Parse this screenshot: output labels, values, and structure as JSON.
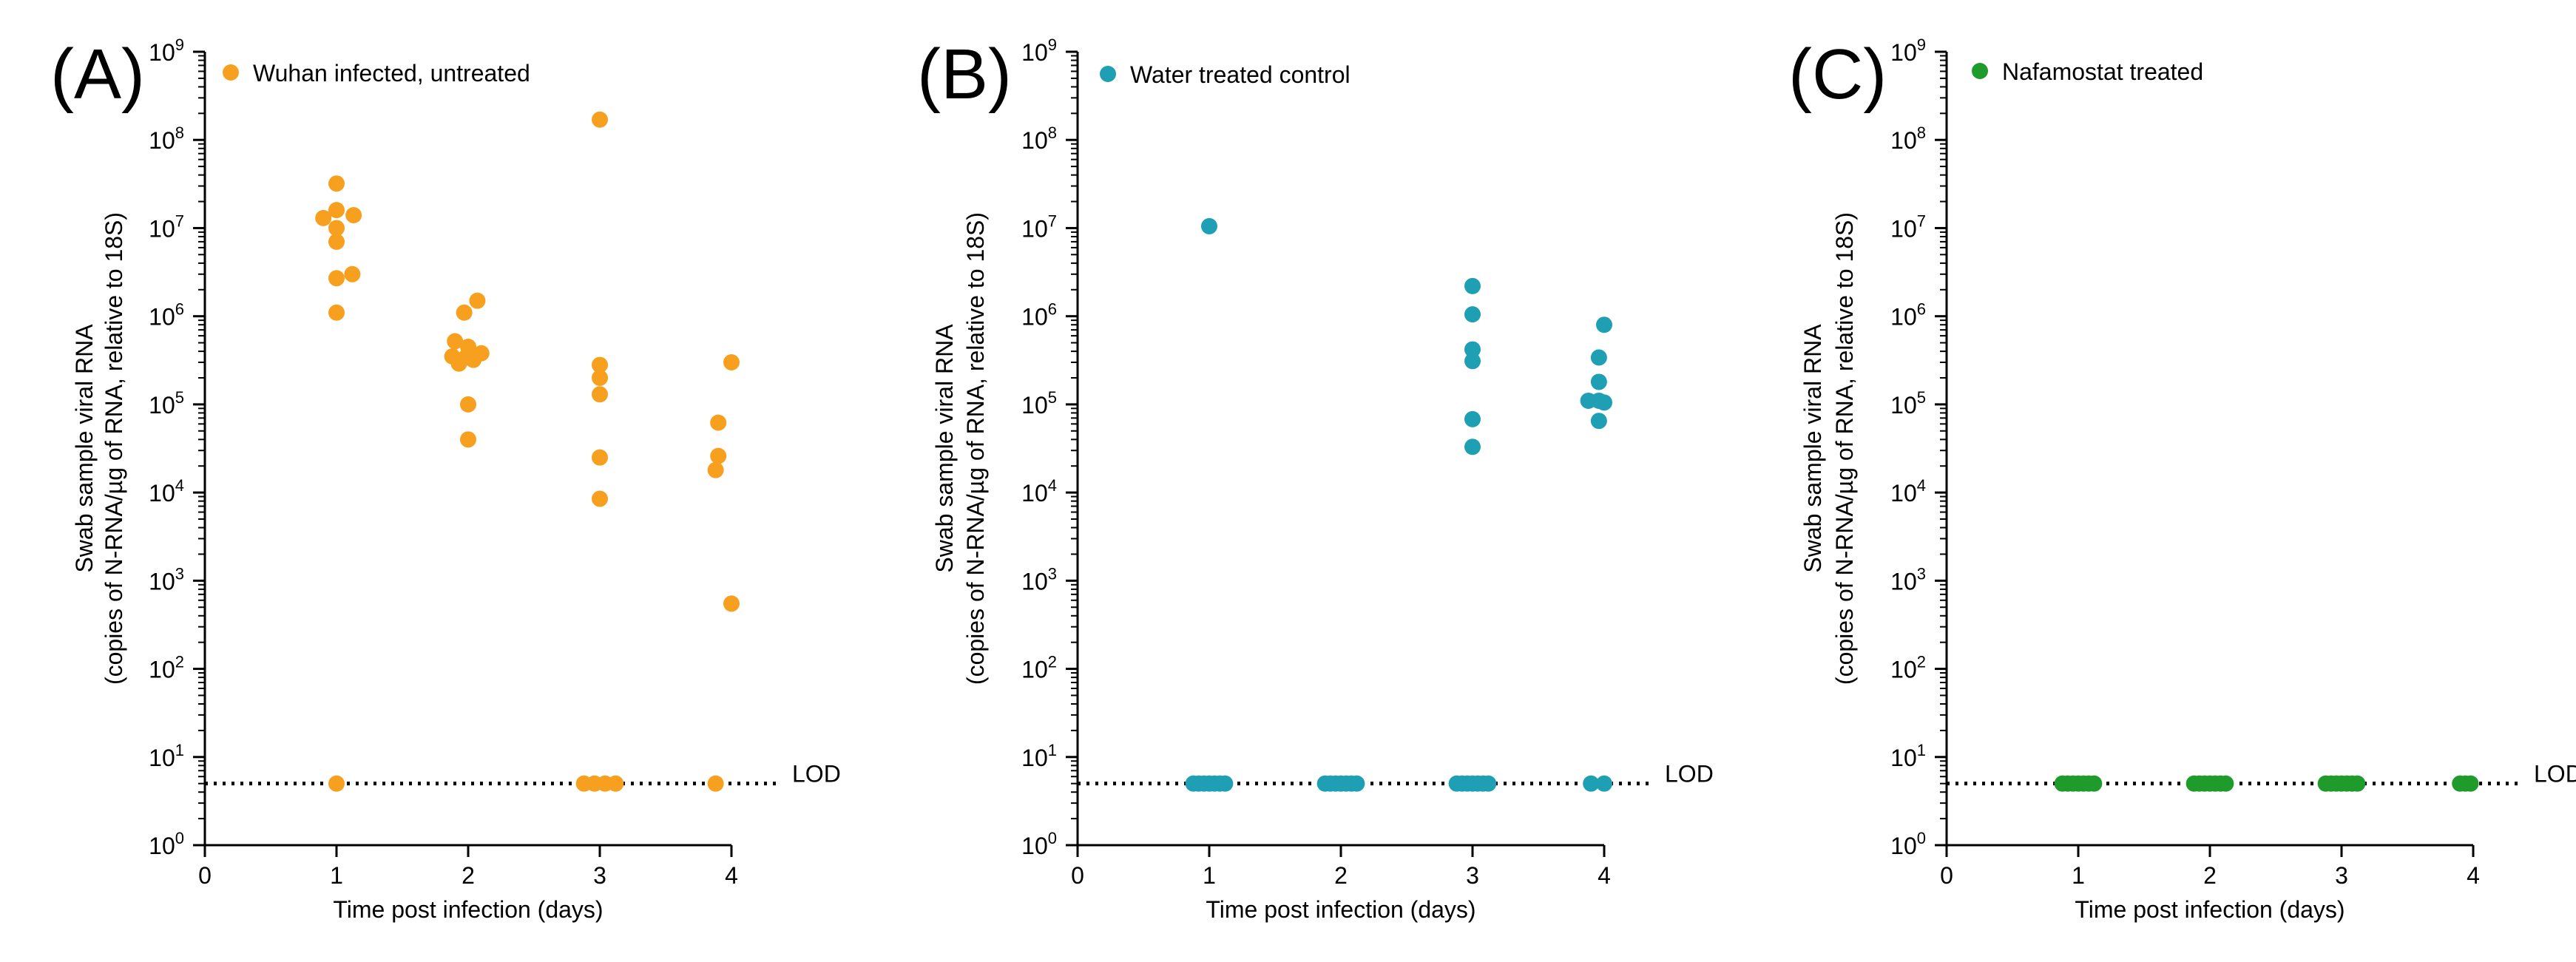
{
  "chart_data": [
    {
      "type": "scatter",
      "panel_label": "(A)",
      "legend": "Wuhan infected, untreated",
      "color": "#F7A020",
      "xlabel": "Time post infection (days)",
      "ylabel_lines": [
        "Swab sample viral RNA",
        "(copies of N-RNA/µg of RNA, relative to 18S)"
      ],
      "xlim": [
        0,
        4
      ],
      "xticks": [
        "0",
        "1",
        "2",
        "3",
        "4"
      ],
      "yscale": "log10",
      "ylim_exp": [
        0,
        9
      ],
      "yticks_base": "10",
      "yticks_exp": [
        "0",
        "1",
        "2",
        "3",
        "4",
        "5",
        "6",
        "7",
        "8",
        "9"
      ],
      "lod_value": 5,
      "lod_label": "LOD",
      "points": [
        {
          "x": 1.0,
          "y": 32000000
        },
        {
          "x": 0.9,
          "y": 13000000
        },
        {
          "x": 1.0,
          "y": 16000000
        },
        {
          "x": 1.0,
          "y": 10000000
        },
        {
          "x": 1.13,
          "y": 14000000
        },
        {
          "x": 1.0,
          "y": 7000000
        },
        {
          "x": 1.12,
          "y": 3000000
        },
        {
          "x": 1.0,
          "y": 2700000
        },
        {
          "x": 1.0,
          "y": 1100000
        },
        {
          "x": 1.0,
          "y": 5
        },
        {
          "x": 2.07,
          "y": 1500000
        },
        {
          "x": 1.97,
          "y": 1100000
        },
        {
          "x": 1.9,
          "y": 520000
        },
        {
          "x": 2.0,
          "y": 450000
        },
        {
          "x": 2.1,
          "y": 380000
        },
        {
          "x": 1.88,
          "y": 350000
        },
        {
          "x": 1.98,
          "y": 340000
        },
        {
          "x": 2.04,
          "y": 320000
        },
        {
          "x": 1.93,
          "y": 290000
        },
        {
          "x": 2.0,
          "y": 100000
        },
        {
          "x": 2.0,
          "y": 40000
        },
        {
          "x": 3.0,
          "y": 170000000
        },
        {
          "x": 3.0,
          "y": 280000
        },
        {
          "x": 3.0,
          "y": 200000
        },
        {
          "x": 3.0,
          "y": 130000
        },
        {
          "x": 3.0,
          "y": 25000
        },
        {
          "x": 3.0,
          "y": 8500
        },
        {
          "x": 2.88,
          "y": 5
        },
        {
          "x": 2.96,
          "y": 5
        },
        {
          "x": 3.04,
          "y": 5
        },
        {
          "x": 3.12,
          "y": 5
        },
        {
          "x": 4.0,
          "y": 300000
        },
        {
          "x": 3.9,
          "y": 62000
        },
        {
          "x": 3.9,
          "y": 26000
        },
        {
          "x": 3.88,
          "y": 18000
        },
        {
          "x": 4.0,
          "y": 550
        },
        {
          "x": 3.88,
          "y": 5
        }
      ]
    },
    {
      "type": "scatter",
      "panel_label": "(B)",
      "legend": "Water treated control",
      "color": "#1E9FB3",
      "xlabel": "Time post infection (days)",
      "ylabel_lines": [
        "Swab sample viral RNA",
        "(copies of N-RNA/µg of RNA, relative to 18S)"
      ],
      "xlim": [
        0,
        4
      ],
      "xticks": [
        "0",
        "1",
        "2",
        "3",
        "4"
      ],
      "yscale": "log10",
      "ylim_exp": [
        0,
        9
      ],
      "yticks_base": "10",
      "yticks_exp": [
        "0",
        "1",
        "2",
        "3",
        "4",
        "5",
        "6",
        "7",
        "8",
        "9"
      ],
      "lod_value": 5,
      "lod_label": "LOD",
      "points": [
        {
          "x": 1.0,
          "y": 10500000
        },
        {
          "x": 0.88,
          "y": 5
        },
        {
          "x": 0.92,
          "y": 5
        },
        {
          "x": 0.96,
          "y": 5
        },
        {
          "x": 1.0,
          "y": 5
        },
        {
          "x": 1.04,
          "y": 5
        },
        {
          "x": 1.08,
          "y": 5
        },
        {
          "x": 1.12,
          "y": 5
        },
        {
          "x": 1.88,
          "y": 5
        },
        {
          "x": 1.92,
          "y": 5
        },
        {
          "x": 1.96,
          "y": 5
        },
        {
          "x": 2.0,
          "y": 5
        },
        {
          "x": 2.04,
          "y": 5
        },
        {
          "x": 2.08,
          "y": 5
        },
        {
          "x": 2.12,
          "y": 5
        },
        {
          "x": 3.0,
          "y": 2200000
        },
        {
          "x": 3.0,
          "y": 1050000
        },
        {
          "x": 3.0,
          "y": 420000
        },
        {
          "x": 3.0,
          "y": 310000
        },
        {
          "x": 3.0,
          "y": 68000
        },
        {
          "x": 3.0,
          "y": 33000
        },
        {
          "x": 2.88,
          "y": 5
        },
        {
          "x": 2.92,
          "y": 5
        },
        {
          "x": 2.96,
          "y": 5
        },
        {
          "x": 3.0,
          "y": 5
        },
        {
          "x": 3.04,
          "y": 5
        },
        {
          "x": 3.08,
          "y": 5
        },
        {
          "x": 3.12,
          "y": 5
        },
        {
          "x": 4.0,
          "y": 800000
        },
        {
          "x": 3.96,
          "y": 340000
        },
        {
          "x": 3.96,
          "y": 180000
        },
        {
          "x": 3.88,
          "y": 110000
        },
        {
          "x": 3.96,
          "y": 110000
        },
        {
          "x": 4.0,
          "y": 105000
        },
        {
          "x": 3.96,
          "y": 65000
        },
        {
          "x": 3.9,
          "y": 5
        },
        {
          "x": 4.0,
          "y": 5
        }
      ]
    },
    {
      "type": "scatter",
      "panel_label": "(C)",
      "legend": "Nafamostat treated",
      "color": "#1E9B2A",
      "xlabel": "Time post infection (days)",
      "ylabel_lines": [
        "Swab sample viral RNA",
        "(copies of N-RNA/µg of RNA, relative to 18S)"
      ],
      "xlim": [
        0,
        4
      ],
      "xticks": [
        "0",
        "1",
        "2",
        "3",
        "4"
      ],
      "yscale": "log10",
      "ylim_exp": [
        0,
        9
      ],
      "yticks_base": "10",
      "yticks_exp": [
        "0",
        "1",
        "2",
        "3",
        "4",
        "5",
        "6",
        "7",
        "8",
        "9"
      ],
      "lod_value": 5,
      "lod_label": "LOD",
      "points": [
        {
          "x": 0.88,
          "y": 5
        },
        {
          "x": 0.92,
          "y": 5
        },
        {
          "x": 0.96,
          "y": 5
        },
        {
          "x": 1.0,
          "y": 5
        },
        {
          "x": 1.04,
          "y": 5
        },
        {
          "x": 1.08,
          "y": 5
        },
        {
          "x": 1.12,
          "y": 5
        },
        {
          "x": 1.88,
          "y": 5
        },
        {
          "x": 1.92,
          "y": 5
        },
        {
          "x": 1.96,
          "y": 5
        },
        {
          "x": 2.0,
          "y": 5
        },
        {
          "x": 2.04,
          "y": 5
        },
        {
          "x": 2.08,
          "y": 5
        },
        {
          "x": 2.12,
          "y": 5
        },
        {
          "x": 2.88,
          "y": 5
        },
        {
          "x": 2.92,
          "y": 5
        },
        {
          "x": 2.96,
          "y": 5
        },
        {
          "x": 3.0,
          "y": 5
        },
        {
          "x": 3.04,
          "y": 5
        },
        {
          "x": 3.08,
          "y": 5
        },
        {
          "x": 3.12,
          "y": 5
        },
        {
          "x": 3.9,
          "y": 5
        },
        {
          "x": 3.94,
          "y": 5
        },
        {
          "x": 3.98,
          "y": 5
        }
      ]
    }
  ]
}
